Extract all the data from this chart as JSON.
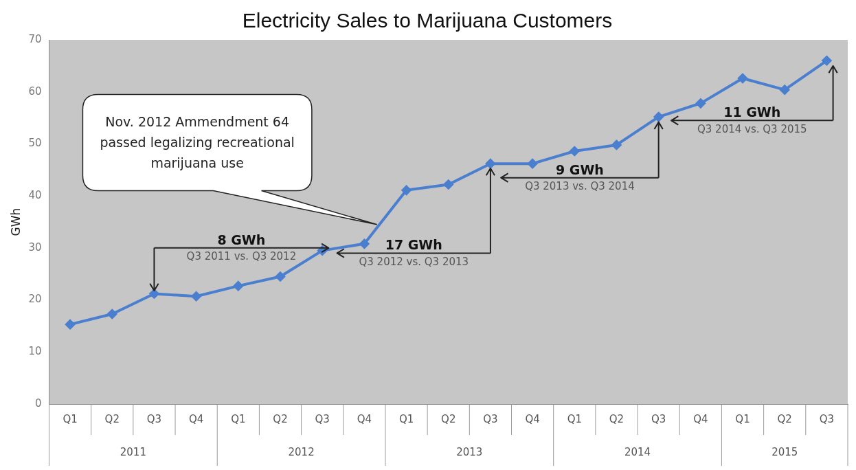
{
  "chart_data": {
    "type": "line",
    "title": "Electricity Sales to Marijuana Customers",
    "ylabel": "GWh",
    "categories": [
      "Q1",
      "Q2",
      "Q3",
      "Q4",
      "Q1",
      "Q2",
      "Q3",
      "Q4",
      "Q1",
      "Q2",
      "Q3",
      "Q4",
      "Q1",
      "Q2",
      "Q3",
      "Q4",
      "Q1",
      "Q2",
      "Q3"
    ],
    "series": [
      {
        "color": "#4a7fd0",
        "values": [
          15.3,
          17.3,
          21.2,
          20.7,
          22.7,
          24.5,
          29.5,
          30.8,
          41.1,
          42.2,
          46.2,
          46.2,
          48.6,
          49.8,
          55.2,
          57.8,
          62.6,
          60.4,
          66.0
        ]
      }
    ],
    "ylim": [
      0,
      70
    ],
    "yticks": [
      0,
      10,
      20,
      30,
      40,
      50,
      60,
      70
    ],
    "grid": false,
    "legend": false,
    "marker": "diamond",
    "line_style": "solid",
    "annotations": [
      "Nov. 2012 Ammendment 64 passed legalizing recreational marijuana use",
      "8 GWh",
      "Q3 2011 vs. Q3 2012",
      "17 GWh",
      "Q3 2012 vs. Q3 2013",
      "9 GWh",
      "Q3 2013 vs. Q3 2014",
      "11 GWh",
      "Q3 2014 vs. Q3 2015",
      "2011",
      "2012",
      "2013",
      "2014",
      "2015"
    ]
  }
}
